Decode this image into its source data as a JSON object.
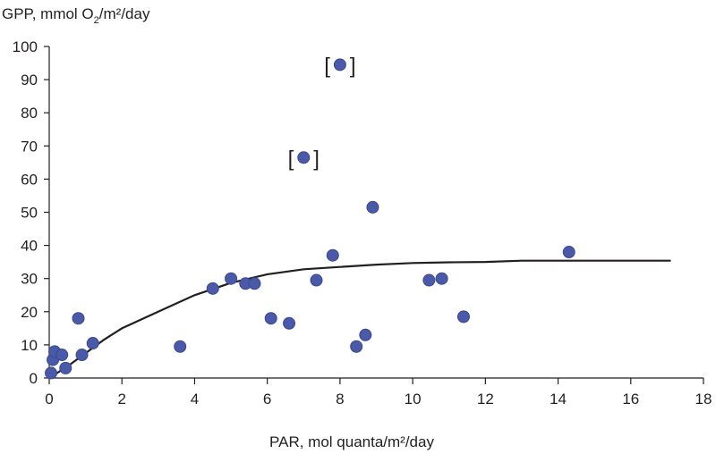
{
  "chart_data": {
    "type": "scatter",
    "ylabel": {
      "prefix": "GPP, mmol O",
      "subscript": "2",
      "suffix": "/m²/day"
    },
    "xlabel": "PAR, mol quanta/m²/day",
    "xlim": [
      0,
      18
    ],
    "ylim": [
      0,
      100
    ],
    "x_ticks": [
      "0",
      "2",
      "4",
      "6",
      "8",
      "10",
      "12",
      "14",
      "16",
      "18"
    ],
    "y_ticks": [
      "0",
      "10",
      "20",
      "30",
      "40",
      "50",
      "60",
      "70",
      "80",
      "90",
      "100"
    ],
    "grid": false,
    "legend": "none",
    "point_color": "#4a5aa8",
    "line_color": "#231f20",
    "points": [
      {
        "x": 0.05,
        "y": 1.5
      },
      {
        "x": 0.1,
        "y": 5.5
      },
      {
        "x": 0.15,
        "y": 8
      },
      {
        "x": 0.35,
        "y": 7
      },
      {
        "x": 0.45,
        "y": 3
      },
      {
        "x": 0.8,
        "y": 18
      },
      {
        "x": 0.9,
        "y": 7
      },
      {
        "x": 1.2,
        "y": 10.5
      },
      {
        "x": 3.6,
        "y": 9.5
      },
      {
        "x": 4.5,
        "y": 27
      },
      {
        "x": 5.0,
        "y": 30
      },
      {
        "x": 5.4,
        "y": 28.5
      },
      {
        "x": 5.65,
        "y": 28.5
      },
      {
        "x": 6.1,
        "y": 18
      },
      {
        "x": 6.6,
        "y": 16.5
      },
      {
        "x": 7.0,
        "y": 66.5
      },
      {
        "x": 7.35,
        "y": 29.5
      },
      {
        "x": 7.8,
        "y": 37
      },
      {
        "x": 8.0,
        "y": 94.5
      },
      {
        "x": 8.45,
        "y": 9.5
      },
      {
        "x": 8.7,
        "y": 13
      },
      {
        "x": 8.9,
        "y": 51.5
      },
      {
        "x": 10.45,
        "y": 29.5
      },
      {
        "x": 10.8,
        "y": 30
      },
      {
        "x": 11.4,
        "y": 18.5
      },
      {
        "x": 14.3,
        "y": 38
      }
    ],
    "bracketed_points": [
      {
        "x": 7.0,
        "y": 66.5,
        "open": "[",
        "close": "]"
      },
      {
        "x": 8.0,
        "y": 94.5,
        "open": "[",
        "close": "]"
      }
    ],
    "fit_line": [
      {
        "x": 0,
        "y": 0
      },
      {
        "x": 0.5,
        "y": 3.5
      },
      {
        "x": 1,
        "y": 7.5
      },
      {
        "x": 1.5,
        "y": 11.5
      },
      {
        "x": 2,
        "y": 15
      },
      {
        "x": 3,
        "y": 20
      },
      {
        "x": 4,
        "y": 25
      },
      {
        "x": 5,
        "y": 28.7
      },
      {
        "x": 6,
        "y": 31.3
      },
      {
        "x": 7,
        "y": 32.8
      },
      {
        "x": 8,
        "y": 33.5
      },
      {
        "x": 9,
        "y": 34.2
      },
      {
        "x": 10,
        "y": 34.7
      },
      {
        "x": 11,
        "y": 34.9
      },
      {
        "x": 12,
        "y": 35
      },
      {
        "x": 13,
        "y": 35.4
      },
      {
        "x": 14,
        "y": 35.4
      },
      {
        "x": 15,
        "y": 35.4
      },
      {
        "x": 16,
        "y": 35.4
      },
      {
        "x": 17.1,
        "y": 35.4
      }
    ]
  }
}
